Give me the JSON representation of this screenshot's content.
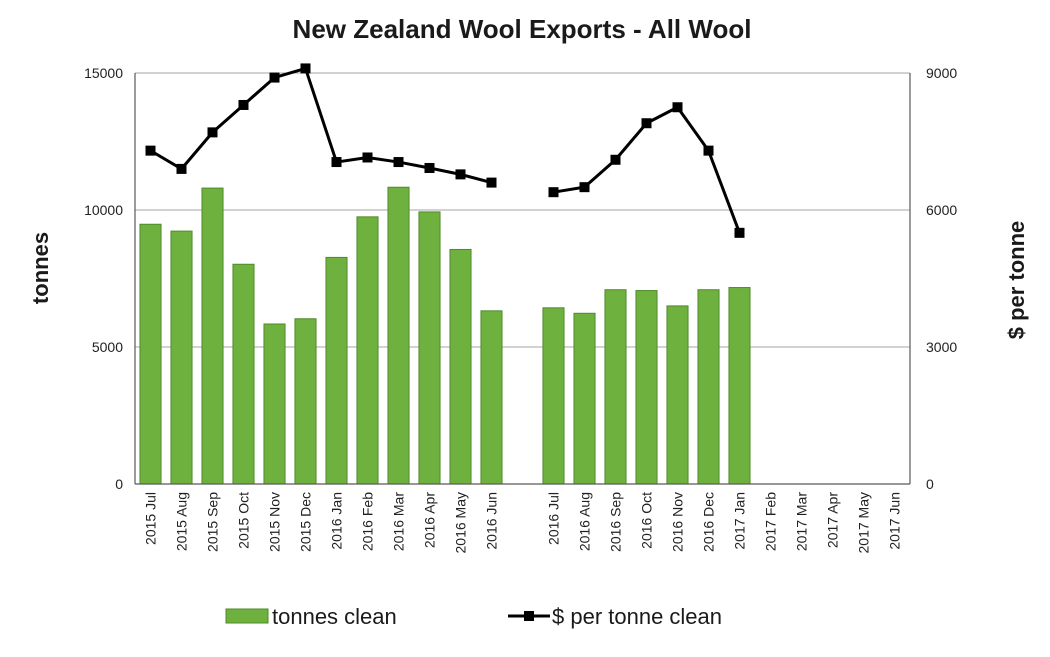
{
  "chart_data": {
    "type": "bar",
    "title": "New Zealand Wool Exports - All Wool",
    "ylabel": "tonnes",
    "y2label": "$ per tonne",
    "categories": [
      "2015 Jul",
      "2015 Aug",
      "2015 Sep",
      "2015 Oct",
      "2015 Nov",
      "2015 Dec",
      "2016 Jan",
      "2016 Feb",
      "2016 Mar",
      "2016 Apr",
      "2016 May",
      "2016 Jun",
      "",
      "2016 Jul",
      "2016 Aug",
      "2016 Sep",
      "2016 Oct",
      "2016 Nov",
      "2016 Dec",
      "2017 Jan",
      "2017 Feb",
      "2017 Mar",
      "2017 Apr",
      "2017 May",
      "2017 Jun"
    ],
    "ylim": [
      0,
      15000
    ],
    "yticks": [
      0,
      5000,
      10000,
      15000
    ],
    "y2lim": [
      0,
      9000
    ],
    "y2ticks": [
      0,
      3000,
      6000,
      9000
    ],
    "grid": true,
    "legend_position": "bottom",
    "series": [
      {
        "name": "tonnes clean",
        "type": "bar",
        "axis": "left",
        "color": "#6fb13f",
        "values": [
          9480,
          9230,
          10800,
          8020,
          5840,
          6030,
          8270,
          9750,
          10830,
          9930,
          8560,
          6320,
          null,
          6430,
          6230,
          7090,
          7060,
          6500,
          7090,
          7170,
          null,
          null,
          null,
          null,
          null
        ]
      },
      {
        "name": "$ per tonne clean",
        "type": "line",
        "axis": "right",
        "color": "#000000",
        "values": [
          7300,
          6900,
          7700,
          8300,
          8900,
          9100,
          7050,
          7150,
          7050,
          6920,
          6780,
          6600,
          null,
          6390,
          6500,
          7100,
          7900,
          8250,
          7300,
          5500,
          null,
          null,
          null,
          null,
          null
        ]
      }
    ]
  }
}
